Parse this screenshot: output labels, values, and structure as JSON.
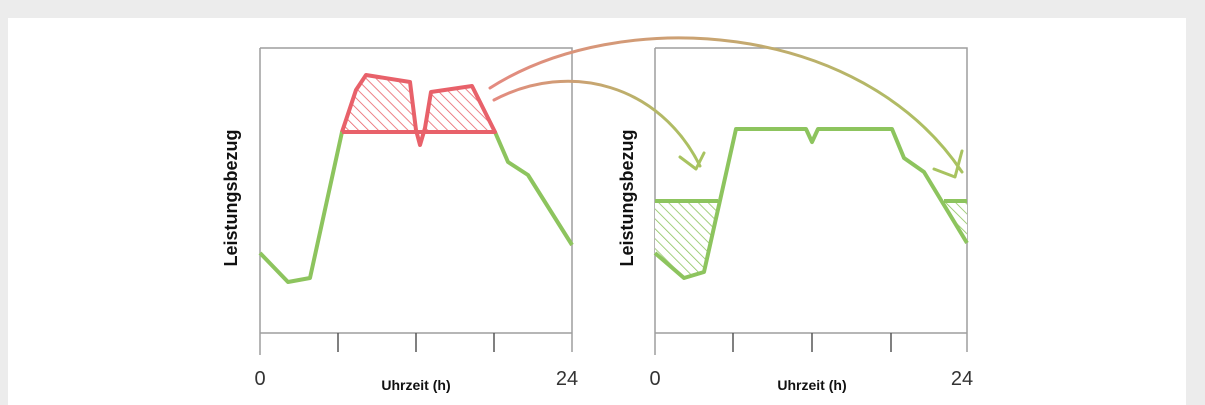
{
  "colors": {
    "background": "#ececec",
    "card": "#ffffff",
    "frame": "#9e9e9e",
    "curve_green": "#8dc45e",
    "peak_red": "#e8616a",
    "arrow_start": "#e48a80",
    "arrow_end": "#a8c360"
  },
  "left_panel": {
    "ylabel": "Leistungsbezug",
    "xlabel": "Uhrzeit (h)",
    "x_start": "0",
    "x_end": "24"
  },
  "right_panel": {
    "ylabel": "Leistungsbezug",
    "xlabel": "Uhrzeit (h)",
    "x_start": "0",
    "x_end": "24"
  }
}
